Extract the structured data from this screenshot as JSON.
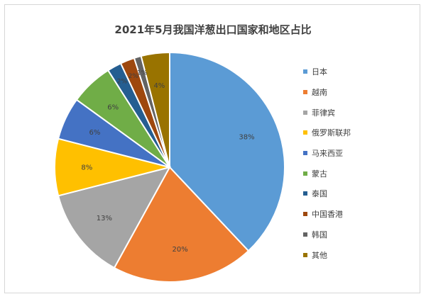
{
  "chart_data": {
    "type": "pie",
    "title": "2021年5月我国洋葱出口国家和地区占比",
    "slices": [
      {
        "label": "日本",
        "value": 38,
        "display": "38%",
        "color": "#5b9bd5"
      },
      {
        "label": "越南",
        "value": 20,
        "display": "20%",
        "color": "#ed7d31"
      },
      {
        "label": "菲律宾",
        "value": 13,
        "display": "13%",
        "color": "#a5a5a5"
      },
      {
        "label": "俄罗斯联邦",
        "value": 8,
        "display": "8%",
        "color": "#ffc000"
      },
      {
        "label": "马来西亚",
        "value": 6,
        "display": "6%",
        "color": "#4472c4"
      },
      {
        "label": "蒙古",
        "value": 6,
        "display": "6%",
        "color": "#70ad47"
      },
      {
        "label": "泰国",
        "value": 2,
        "display": "2%",
        "color": "#255e91"
      },
      {
        "label": "中国香港",
        "value": 2,
        "display": "2%",
        "color": "#9e480e"
      },
      {
        "label": "韩国",
        "value": 1,
        "display": "1%",
        "color": "#636363"
      },
      {
        "label": "其他",
        "value": 4,
        "display": "4%",
        "color": "#997300"
      }
    ],
    "legend_position": "right"
  }
}
